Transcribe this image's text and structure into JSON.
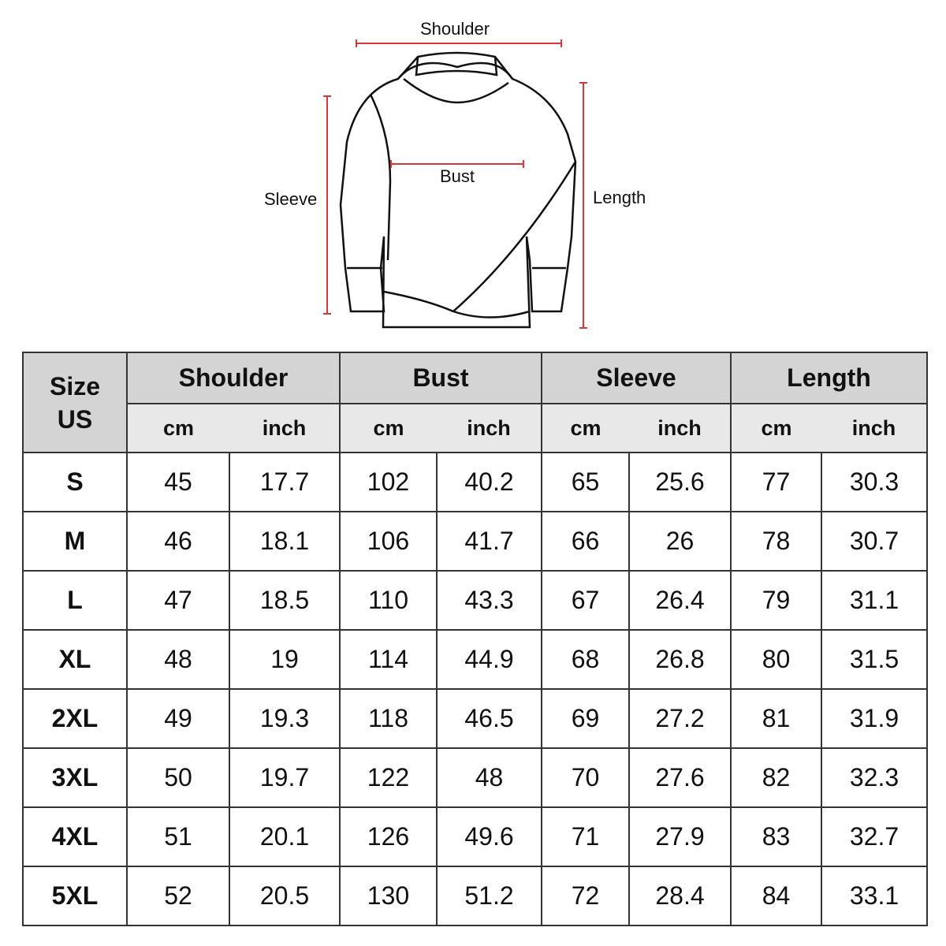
{
  "diagram": {
    "labels": {
      "shoulder": "Shoulder",
      "bust": "Bust",
      "sleeve": "Sleeve",
      "length": "Length"
    },
    "measure_color": "#d9363e"
  },
  "table": {
    "size_header": [
      "Size",
      "US"
    ],
    "groups": [
      "Shoulder",
      "Bust",
      "Sleeve",
      "Length"
    ],
    "units": [
      "cm",
      "inch"
    ],
    "header_bg": "#d4d4d4",
    "subheader_bg": "#e8e8e8",
    "rows": [
      {
        "size": "S",
        "values": [
          "45",
          "17.7",
          "102",
          "40.2",
          "65",
          "25.6",
          "77",
          "30.3"
        ]
      },
      {
        "size": "M",
        "values": [
          "46",
          "18.1",
          "106",
          "41.7",
          "66",
          "26",
          "78",
          "30.7"
        ]
      },
      {
        "size": "L",
        "values": [
          "47",
          "18.5",
          "110",
          "43.3",
          "67",
          "26.4",
          "79",
          "31.1"
        ]
      },
      {
        "size": "XL",
        "values": [
          "48",
          "19",
          "114",
          "44.9",
          "68",
          "26.8",
          "80",
          "31.5"
        ]
      },
      {
        "size": "2XL",
        "values": [
          "49",
          "19.3",
          "118",
          "46.5",
          "69",
          "27.2",
          "81",
          "31.9"
        ]
      },
      {
        "size": "3XL",
        "values": [
          "50",
          "19.7",
          "122",
          "48",
          "70",
          "27.6",
          "82",
          "32.3"
        ]
      },
      {
        "size": "4XL",
        "values": [
          "51",
          "20.1",
          "126",
          "49.6",
          "71",
          "27.9",
          "83",
          "32.7"
        ]
      },
      {
        "size": "5XL",
        "values": [
          "52",
          "20.5",
          "130",
          "51.2",
          "72",
          "28.4",
          "84",
          "33.1"
        ]
      }
    ]
  }
}
